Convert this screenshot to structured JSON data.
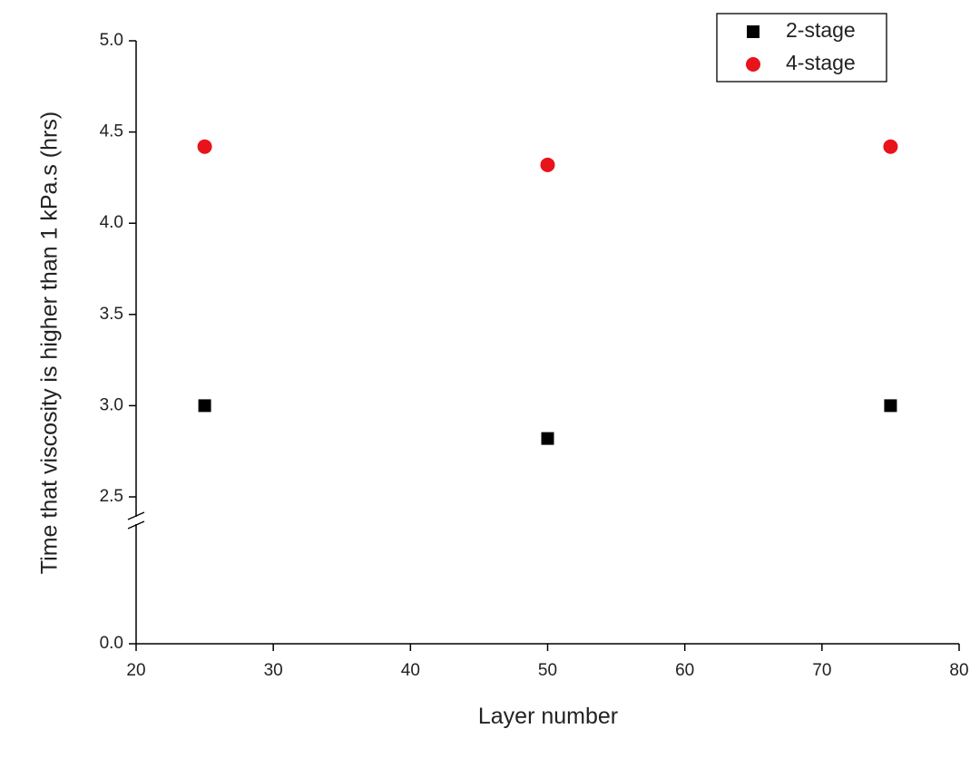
{
  "chart_data": {
    "type": "scatter",
    "xlabel": "Layer number",
    "ylabel": "Time that viscosity is higher than 1 kPa.s (hrs)",
    "xlim": [
      20,
      80
    ],
    "xticks": [
      20,
      30,
      40,
      50,
      60,
      70,
      80
    ],
    "ylim": [
      {
        "value": 0,
        "label": "0.0"
      },
      {
        "value": 5,
        "label": "5.0"
      }
    ],
    "yticks": [
      {
        "value": 0,
        "label": "0.0"
      },
      {
        "value": 2.5,
        "label": "2.5"
      },
      {
        "value": 3,
        "label": "3.0"
      },
      3.5,
      {
        "value": 4,
        "label": "4.0"
      },
      4.5,
      {
        "value": 5,
        "label": "5.0"
      }
    ],
    "axis_break": true,
    "legend": "top-right",
    "series": [
      {
        "name": "2-stage",
        "color": "#000000",
        "marker": "square",
        "x": [
          25,
          50,
          75
        ],
        "values": [
          3.0,
          2.82,
          3.0
        ]
      },
      {
        "name": "4-stage",
        "color": "#e8131b",
        "marker": "circle",
        "x": [
          25,
          50,
          75
        ],
        "values": [
          4.42,
          4.32,
          4.42
        ]
      }
    ]
  }
}
